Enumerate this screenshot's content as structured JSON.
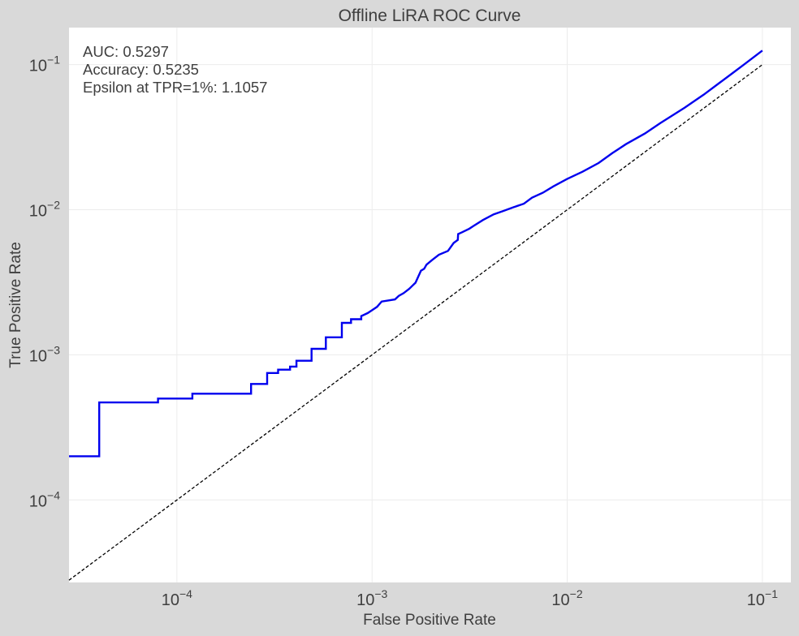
{
  "chart_data": {
    "type": "line",
    "title": "Offline LiRA ROC Curve",
    "xlabel": "False Positive Rate",
    "ylabel": "True Positive Rate",
    "xscale": "log",
    "yscale": "log",
    "xlim": [
      2.8e-05,
      0.14
    ],
    "ylim": [
      2.7e-05,
      0.18
    ],
    "grid": true,
    "x_ticks": [
      {
        "value": 0.0001,
        "base": "10",
        "exp": "−4"
      },
      {
        "value": 0.001,
        "base": "10",
        "exp": "−3"
      },
      {
        "value": 0.01,
        "base": "10",
        "exp": "−2"
      },
      {
        "value": 0.1,
        "base": "10",
        "exp": "−1"
      }
    ],
    "y_ticks": [
      {
        "value": 0.0001,
        "base": "10",
        "exp": "−4"
      },
      {
        "value": 0.001,
        "base": "10",
        "exp": "−3"
      },
      {
        "value": 0.01,
        "base": "10",
        "exp": "−2"
      },
      {
        "value": 0.1,
        "base": "10",
        "exp": "−1"
      }
    ],
    "annotations": [
      "AUC: 0.5297",
      "Accuracy: 0.5235",
      "Epsilon at TPR=1%: 1.1057"
    ],
    "series": [
      {
        "style": "solid",
        "color": "#0000ee",
        "x": [
          2.8e-05,
          4e-05,
          4e-05,
          8e-05,
          8e-05,
          0.00012,
          0.00012,
          0.00024,
          0.00024,
          0.00029,
          0.00029,
          0.00033,
          0.00033,
          0.00038,
          0.00038,
          0.00041,
          0.00041,
          0.00049,
          0.00049,
          0.00058,
          0.00058,
          0.0007,
          0.0007,
          0.00078,
          0.00078,
          0.00088,
          0.00088,
          0.00095,
          0.001,
          0.00106,
          0.00112,
          0.00131,
          0.00137,
          0.00145,
          0.00155,
          0.00167,
          0.00178,
          0.00185,
          0.0019,
          0.00203,
          0.0022,
          0.00245,
          0.00262,
          0.00275,
          0.00276,
          0.0029,
          0.00315,
          0.0033,
          0.0037,
          0.0042,
          0.0047,
          0.0053,
          0.006,
          0.0066,
          0.0075,
          0.0085,
          0.01,
          0.012,
          0.0145,
          0.017,
          0.02,
          0.025,
          0.03,
          0.04,
          0.05,
          0.06,
          0.07,
          0.08,
          0.1
        ],
        "y": [
          0.0002,
          0.0002,
          0.00047,
          0.00047,
          0.0005,
          0.0005,
          0.00054,
          0.00054,
          0.00063,
          0.00063,
          0.00075,
          0.00075,
          0.00079,
          0.00079,
          0.00083,
          0.00083,
          0.00091,
          0.00091,
          0.0011,
          0.0011,
          0.00132,
          0.00132,
          0.00166,
          0.00166,
          0.00176,
          0.00176,
          0.00185,
          0.00194,
          0.00203,
          0.00214,
          0.00233,
          0.00241,
          0.00255,
          0.00266,
          0.00285,
          0.00314,
          0.0038,
          0.00392,
          0.00418,
          0.0045,
          0.0049,
          0.0052,
          0.0059,
          0.0062,
          0.0068,
          0.007,
          0.0074,
          0.0077,
          0.0085,
          0.0093,
          0.0098,
          0.0104,
          0.011,
          0.0121,
          0.0131,
          0.0145,
          0.0163,
          0.0183,
          0.021,
          0.0245,
          0.0283,
          0.0335,
          0.0395,
          0.0505,
          0.062,
          0.0745,
          0.087,
          0.0995,
          0.125
        ]
      },
      {
        "style": "dashed",
        "color": "#000000",
        "x": [
          2.8e-05,
          0.1
        ],
        "y": [
          2.8e-05,
          0.1
        ]
      }
    ]
  }
}
